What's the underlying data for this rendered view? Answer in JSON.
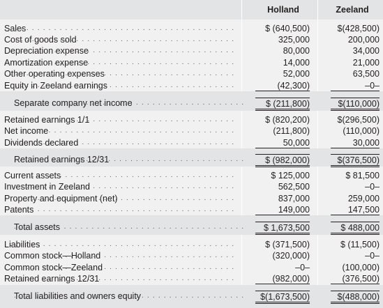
{
  "header": {
    "col1": "Holland",
    "col2": "Zeeland"
  },
  "rows": [
    {
      "label": "Sales",
      "h": "$ (640,500)",
      "z": "$(428,500)"
    },
    {
      "label": "Cost of goods sold",
      "h": "325,000",
      "z": "200,000"
    },
    {
      "label": "Depreciation expense",
      "h": "80,000",
      "z": "34,000"
    },
    {
      "label": "Amortization expense",
      "h": "14,000",
      "z": "21,000"
    },
    {
      "label": "Other operating expenses",
      "h": "52,000",
      "z": "63,500"
    },
    {
      "label": "Equity in Zeeland earnings",
      "h": "(42,300)",
      "z": "–0–"
    },
    {
      "label": "Separate company net income",
      "h": "$ (211,800)",
      "z": "$(110,000)"
    },
    {
      "label": "Retained earnings 1/1",
      "h": "$ (820,200)",
      "z": "$(296,500)"
    },
    {
      "label": "Net income",
      "h": "(211,800)",
      "z": "(110,000)"
    },
    {
      "label": "Dividends declared",
      "h": "50,000",
      "z": "30,000"
    },
    {
      "label": "Retained earnings 12/31",
      "h": "$ (982,000)",
      "z": "$(376,500)"
    },
    {
      "label": "Current assets",
      "h": "$ 125,000",
      "z": "$ 81,500"
    },
    {
      "label": "Investment in Zeeland",
      "h": "562,500",
      "z": "–0–"
    },
    {
      "label": "Property and equipment (net)",
      "h": "837,000",
      "z": "259,000"
    },
    {
      "label": "Patents",
      "h": "149,000",
      "z": "147,500"
    },
    {
      "label": "Total assets",
      "h": "$ 1,673,500",
      "z": "$ 488,000"
    },
    {
      "label": "Liabilities",
      "h": "$ (371,500)",
      "z": "$ (11,500)"
    },
    {
      "label": "Common stock—Holland",
      "h": "(320,000)",
      "z": "–0–"
    },
    {
      "label": "Common stock—Zeeland",
      "h": "–0–",
      "z": "(100,000)"
    },
    {
      "label": "Retained earnings 12/31",
      "h": "(982,000)",
      "z": "(376,500)"
    },
    {
      "label": "Total liabilities and owners equity",
      "h": "$(1,673,500)",
      "z": "$(488,000)"
    }
  ]
}
